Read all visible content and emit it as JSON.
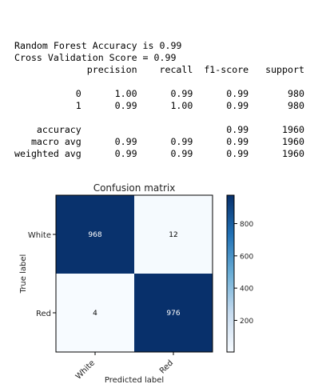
{
  "report": {
    "accuracy_line": "Random Forest Accuracy is 0.99",
    "cv_line": "Cross Validation Score = 0.99",
    "headers": [
      "precision",
      "recall",
      "f1-score",
      "support"
    ],
    "rows": [
      {
        "label": "0",
        "precision": "1.00",
        "recall": "0.99",
        "f1": "0.99",
        "support": "980"
      },
      {
        "label": "1",
        "precision": "0.99",
        "recall": "1.00",
        "f1": "0.99",
        "support": "980"
      },
      {
        "label": "",
        "precision": "",
        "recall": "",
        "f1": "",
        "support": ""
      },
      {
        "label": "accuracy",
        "precision": "",
        "recall": "",
        "f1": "0.99",
        "support": "1960"
      },
      {
        "label": "macro avg",
        "precision": "0.99",
        "recall": "0.99",
        "f1": "0.99",
        "support": "1960"
      },
      {
        "label": "weighted avg",
        "precision": "0.99",
        "recall": "0.99",
        "f1": "0.99",
        "support": "1960"
      }
    ]
  },
  "chart_data": {
    "type": "heatmap",
    "title": "Confusion matrix",
    "xlabel": "Predicted label",
    "ylabel": "True label",
    "x_categories": [
      "White",
      "Red"
    ],
    "y_categories": [
      "White",
      "Red"
    ],
    "values": [
      [
        968,
        12
      ],
      [
        4,
        976
      ]
    ],
    "colormap": "Blues",
    "colorbar": {
      "min": 4,
      "max": 976,
      "ticks": [
        200,
        400,
        600,
        800
      ]
    }
  }
}
